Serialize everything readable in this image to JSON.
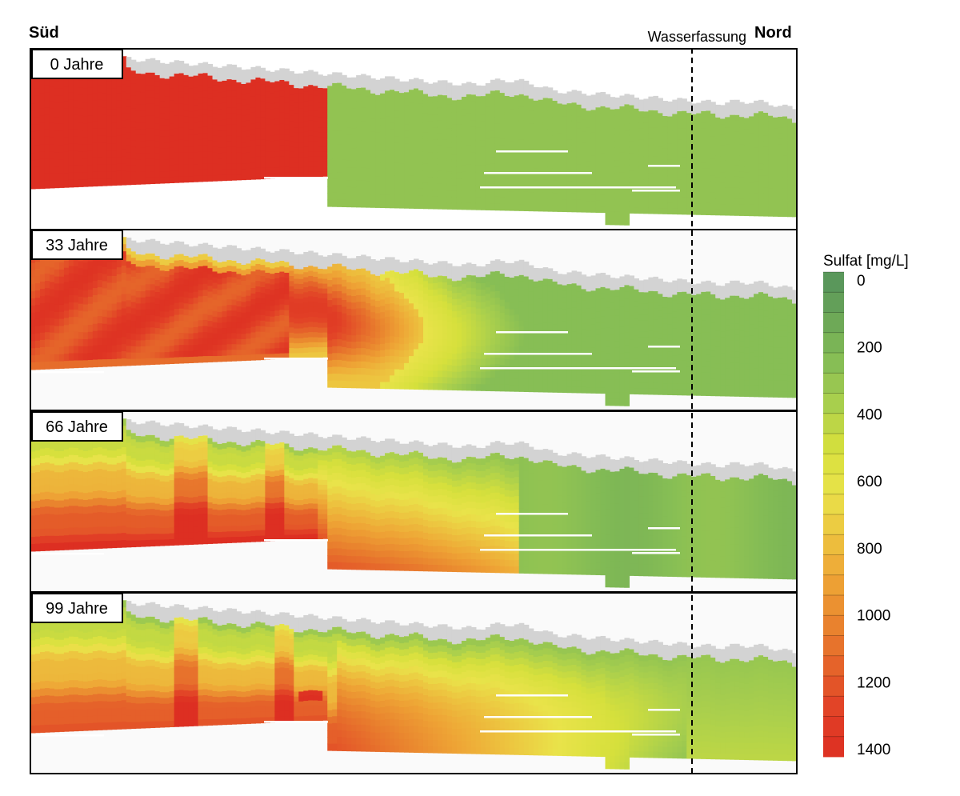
{
  "header": {
    "left_label": "Süd",
    "right_label": "Nord",
    "marker_label": "Wasserfassung"
  },
  "legend": {
    "title": "Sulfat [mg/L]",
    "ticks": [
      "0",
      "200",
      "400",
      "600",
      "800",
      "1000",
      "1200",
      "1400"
    ],
    "levels": 24,
    "min": 0,
    "max": 1400,
    "color_stops": [
      "#55935c",
      "#6aa557",
      "#85bd55",
      "#a9cf4d",
      "#d6e03c",
      "#e9e34a",
      "#edc33f",
      "#eea335",
      "#e9832e",
      "#e5612a",
      "#e13f26",
      "#dd2f22"
    ]
  },
  "chart_data": {
    "type": "heatmap",
    "quantity": "Sulfat [mg/L]",
    "panels": [
      {
        "label": "0 Jahre",
        "years": 0
      },
      {
        "label": "33 Jahre",
        "years": 33
      },
      {
        "label": "66 Jahre",
        "years": 66
      },
      {
        "label": "99 Jahre",
        "years": 99
      }
    ]
  },
  "colors": {
    "surface_layer": "#d3d3d3",
    "background": "#ffffff",
    "frame": "#000000",
    "marker_line": "#000000"
  }
}
